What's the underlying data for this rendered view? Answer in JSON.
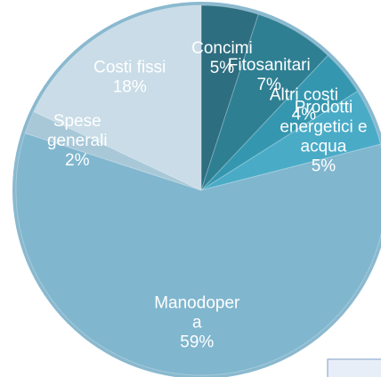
{
  "chart_data": {
    "type": "pie",
    "categories": [
      "Concimi",
      "Fitosanitari",
      "Altri costi",
      "Prodotti energetici e acqua",
      "Manodopera",
      "Spese generali",
      "Costi fissi"
    ],
    "values": [
      5,
      7,
      4,
      5,
      59,
      2,
      18
    ],
    "value_labels": [
      "5%",
      "7%",
      "4%",
      "5%",
      "59%",
      "2%",
      "18%"
    ],
    "colors": [
      "#2d6e80",
      "#2f7f93",
      "#3597af",
      "#4aabc7",
      "#80b6ce",
      "#a8c8d8",
      "#c9dce7"
    ]
  }
}
